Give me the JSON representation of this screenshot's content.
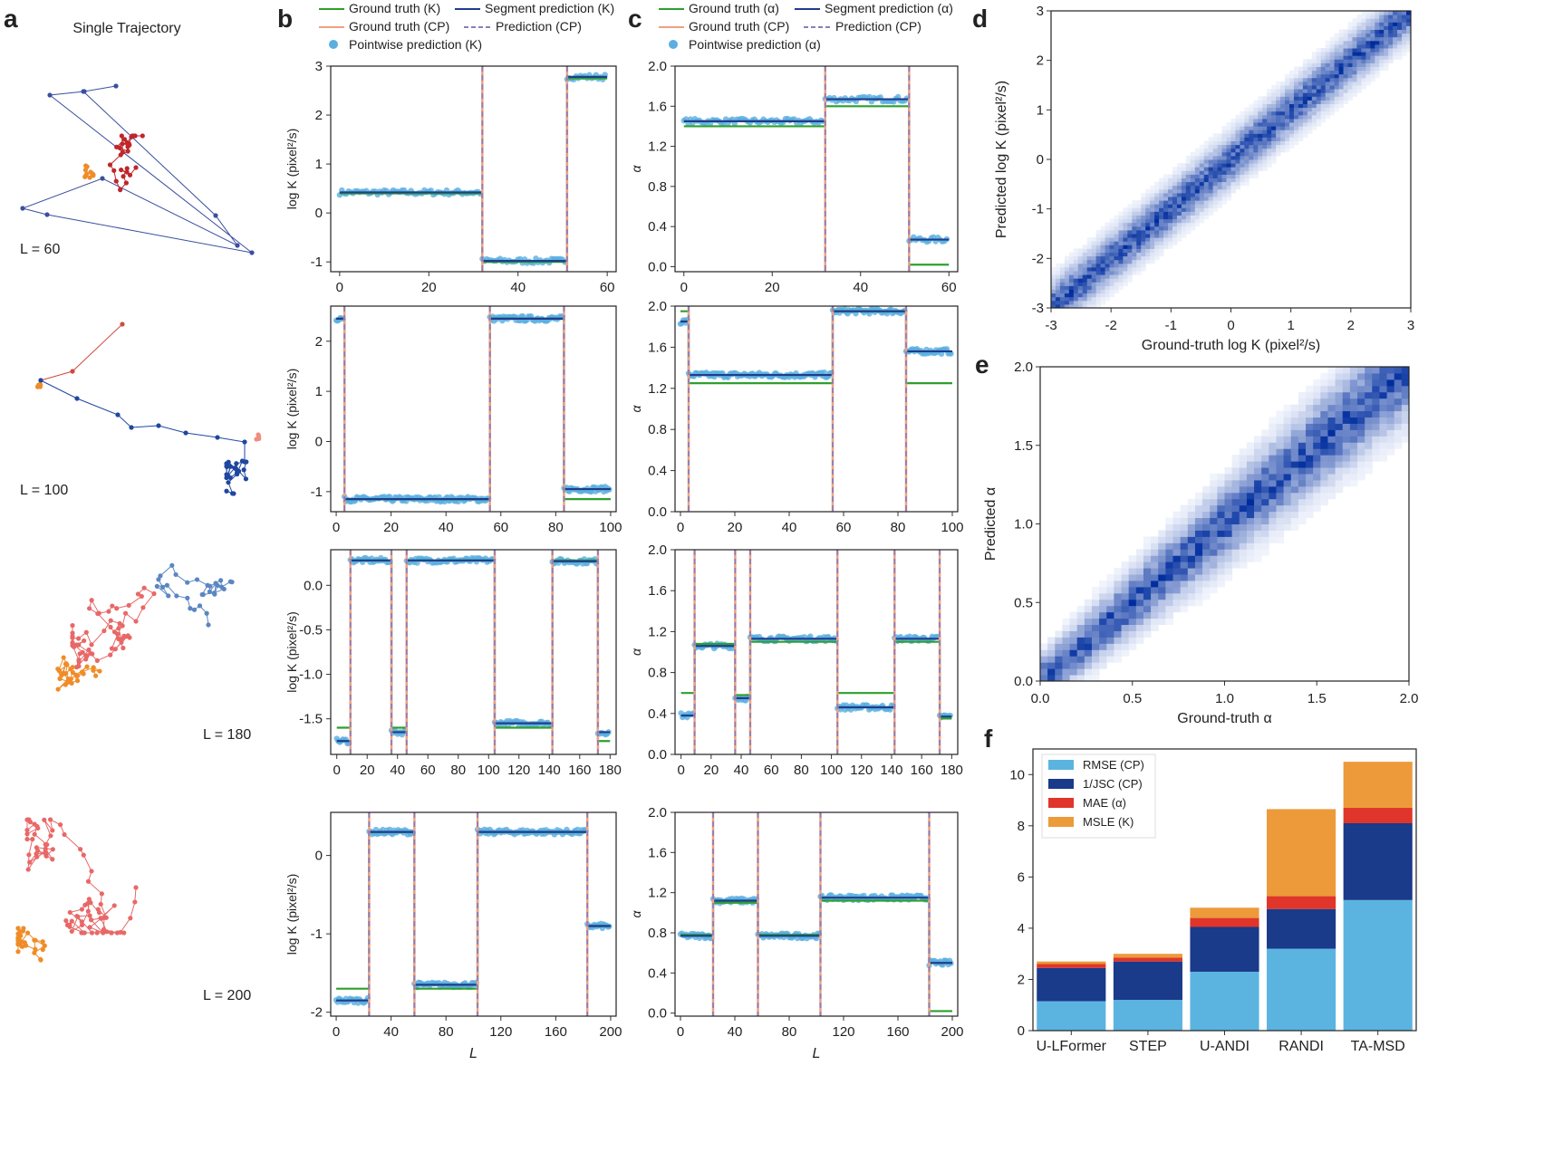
{
  "panel_labels": {
    "a": "a",
    "b": "b",
    "c": "c",
    "d": "d",
    "e": "e",
    "f": "f"
  },
  "colors": {
    "gt": "#2ca02c",
    "seg": "#1f3d8c",
    "gtcp": "#f0a080",
    "predcp": "#8a7fb8",
    "point": "#5aafe0",
    "rmse": "#5bb4e0",
    "jsc": "#1a3a8a",
    "mae": "#e0352a",
    "msle": "#ec9a3a"
  },
  "panel_a": {
    "title": "Single Trajectory",
    "trajectories": [
      {
        "label": "L = 60"
      },
      {
        "label": "L = 100"
      },
      {
        "label": "L = 180"
      },
      {
        "label": "L = 200"
      }
    ]
  },
  "legend_b": {
    "gt": "Ground truth (K)",
    "seg": "Segment prediction (K)",
    "gtcp": "Ground truth (CP)",
    "predcp": "Prediction (CP)",
    "point": "Pointwise prediction (K)"
  },
  "legend_c": {
    "gt": "Ground truth (α)",
    "seg": "Segment prediction (α)",
    "gtcp": "Ground truth (CP)",
    "predcp": "Prediction (CP)",
    "point": "Pointwise prediction (α)"
  },
  "chart_data": [
    {
      "id": "b1",
      "type": "line",
      "ylabel": "log K (pixel²/s)",
      "xlabel": "",
      "L": 60,
      "changepoints": [
        32,
        51
      ],
      "ground_truth": [
        0.4,
        -1.0,
        2.75
      ],
      "segment_prediction": [
        0.42,
        -0.98,
        2.78
      ],
      "xlim": [
        -2,
        62
      ],
      "ylim": [
        -1.2,
        3
      ],
      "xticks": [
        0,
        20,
        40,
        60
      ],
      "yticks": [
        -1,
        0,
        1,
        2,
        3
      ]
    },
    {
      "id": "c1",
      "type": "line",
      "ylabel": "α",
      "xlabel": "",
      "L": 60,
      "changepoints": [
        32,
        51
      ],
      "ground_truth": [
        1.4,
        1.6,
        0.02
      ],
      "segment_prediction": [
        1.45,
        1.67,
        0.27
      ],
      "xlim": [
        -2,
        62
      ],
      "ylim": [
        -0.05,
        2.0
      ],
      "xticks": [
        0,
        20,
        40,
        60
      ],
      "yticks": [
        0.0,
        0.4,
        0.8,
        1.2,
        1.6,
        2.0
      ]
    },
    {
      "id": "b2",
      "type": "line",
      "ylabel": "log K (pixel²/s)",
      "xlabel": "",
      "L": 100,
      "changepoints": [
        3,
        56,
        83
      ],
      "ground_truth": [
        2.45,
        -1.15,
        2.45,
        -1.15
      ],
      "segment_prediction": [
        2.45,
        -1.15,
        2.45,
        -0.95
      ],
      "xlim": [
        -2,
        102
      ],
      "ylim": [
        -1.4,
        2.7
      ],
      "xticks": [
        0,
        20,
        40,
        60,
        80,
        100
      ],
      "yticks": [
        -1,
        0,
        1,
        2
      ]
    },
    {
      "id": "c2",
      "type": "line",
      "ylabel": "α",
      "xlabel": "",
      "L": 100,
      "changepoints": [
        3,
        56,
        83
      ],
      "ground_truth": [
        1.95,
        1.25,
        1.95,
        1.25
      ],
      "segment_prediction": [
        1.85,
        1.33,
        1.95,
        1.56
      ],
      "xlim": [
        -2,
        102
      ],
      "ylim": [
        0.0,
        2.0
      ],
      "xticks": [
        0,
        20,
        40,
        60,
        80,
        100
      ],
      "yticks": [
        0.0,
        0.4,
        0.8,
        1.2,
        1.6,
        2.0
      ]
    },
    {
      "id": "b3",
      "type": "line",
      "ylabel": "log K (pixel²/s)",
      "xlabel": "",
      "L": 180,
      "changepoints": [
        9,
        36,
        46,
        104,
        142,
        172
      ],
      "ground_truth": [
        -1.6,
        0.28,
        -1.6,
        0.28,
        -1.6,
        0.28,
        -1.75
      ],
      "segment_prediction": [
        -1.75,
        0.28,
        -1.65,
        0.28,
        -1.55,
        0.27,
        -1.65
      ],
      "xlim": [
        -4,
        184
      ],
      "ylim": [
        -1.9,
        0.4
      ],
      "xticks": [
        0,
        20,
        40,
        60,
        80,
        100,
        120,
        140,
        160,
        180
      ],
      "yticks": [
        0.0,
        -0.5,
        -1.0,
        -1.5
      ]
    },
    {
      "id": "c3",
      "type": "line",
      "ylabel": "α",
      "xlabel": "",
      "L": 180,
      "changepoints": [
        9,
        36,
        46,
        104,
        142,
        172
      ],
      "ground_truth": [
        0.6,
        1.08,
        0.58,
        1.1,
        0.6,
        1.1,
        0.35
      ],
      "segment_prediction": [
        0.38,
        1.06,
        0.55,
        1.13,
        0.46,
        1.13,
        0.37
      ],
      "xlim": [
        -4,
        184
      ],
      "ylim": [
        0.0,
        2.0
      ],
      "xticks": [
        0,
        20,
        40,
        60,
        80,
        100,
        120,
        140,
        160,
        180
      ],
      "yticks": [
        0.0,
        0.4,
        0.8,
        1.2,
        1.6,
        2.0
      ]
    },
    {
      "id": "b4",
      "type": "line",
      "ylabel": "log K (pixel²/s)",
      "xlabel": "L",
      "L": 200,
      "changepoints": [
        24,
        57,
        103,
        183
      ],
      "ground_truth": [
        -1.7,
        0.3,
        -1.7,
        0.3,
        -0.9
      ],
      "segment_prediction": [
        -1.85,
        0.3,
        -1.65,
        0.3,
        -0.9
      ],
      "xlim": [
        -4,
        204
      ],
      "ylim": [
        -2.05,
        0.55
      ],
      "xticks": [
        0,
        40,
        80,
        120,
        160,
        200
      ],
      "yticks": [
        0,
        -1,
        -2
      ]
    },
    {
      "id": "c4",
      "type": "line",
      "ylabel": "α",
      "xlabel": "L",
      "L": 200,
      "changepoints": [
        24,
        57,
        103,
        183
      ],
      "ground_truth": [
        0.78,
        1.1,
        0.78,
        1.12,
        0.02
      ],
      "segment_prediction": [
        0.77,
        1.12,
        0.77,
        1.15,
        0.5
      ],
      "xlim": [
        -4,
        204
      ],
      "ylim": [
        -0.03,
        2.0
      ],
      "xticks": [
        0,
        40,
        80,
        120,
        160,
        200
      ],
      "yticks": [
        0.0,
        0.4,
        0.8,
        1.2,
        1.6,
        2.0
      ]
    },
    {
      "id": "d",
      "type": "heatmap",
      "xlabel": "Ground-truth  log K (pixel²/s)",
      "ylabel": "Predicted  log K (pixel²/s)",
      "xlim": [
        -3,
        3
      ],
      "ylim": [
        -3,
        3
      ],
      "xticks": [
        -3,
        -2,
        -1,
        0,
        1,
        2,
        3
      ],
      "yticks": [
        -3,
        -2,
        -1,
        0,
        1,
        2,
        3
      ],
      "spread": 0.05
    },
    {
      "id": "e",
      "type": "heatmap",
      "xlabel": "Ground-truth α",
      "ylabel": "Predicted  α",
      "xlim": [
        0,
        2
      ],
      "ylim": [
        0,
        2
      ],
      "xticks": [
        0.0,
        0.5,
        1.0,
        1.5,
        2.0
      ],
      "yticks": [
        0.0,
        0.5,
        1.0,
        1.5,
        2.0
      ],
      "spread": 0.08
    },
    {
      "id": "f",
      "type": "bar",
      "stacked": true,
      "categories": [
        "U-LFormer",
        "STEP",
        "U-ANDI",
        "RANDI",
        "TA-MSD"
      ],
      "series": [
        {
          "name": "RMSE (CP)",
          "values": [
            1.15,
            1.2,
            2.3,
            3.2,
            5.1
          ]
        },
        {
          "name": "1/JSC (CP)",
          "values": [
            1.3,
            1.5,
            1.75,
            1.55,
            3.0
          ]
        },
        {
          "name": "MAE (α)",
          "values": [
            0.15,
            0.15,
            0.35,
            0.5,
            0.6
          ]
        },
        {
          "name": "MSLE (K)",
          "values": [
            0.1,
            0.15,
            0.4,
            3.4,
            1.8
          ]
        }
      ],
      "ylim": [
        0,
        11
      ],
      "yticks": [
        0,
        2,
        4,
        6,
        8,
        10
      ],
      "legend": "top-left"
    }
  ]
}
